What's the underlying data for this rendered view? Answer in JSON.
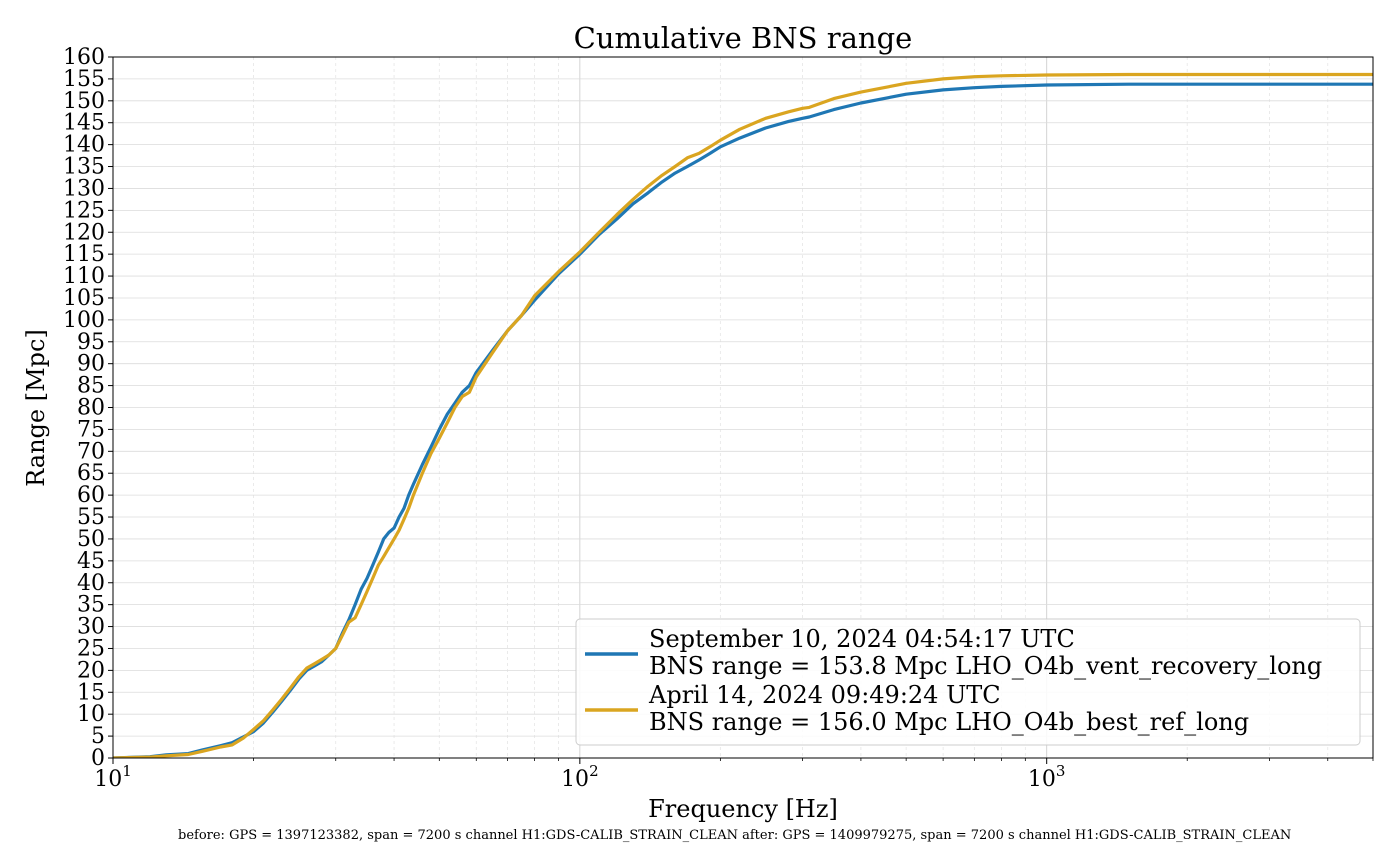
{
  "chart_data": {
    "type": "line",
    "title": "Cumulative BNS range",
    "xlabel": "Frequency [Hz]",
    "ylabel": "Range [Mpc]",
    "xscale": "log",
    "xlim": [
      10,
      5000
    ],
    "ylim": [
      0,
      160
    ],
    "ytick_step": 5,
    "xticks": [
      {
        "value": 10,
        "base": "10",
        "exp": "1"
      },
      {
        "value": 100,
        "base": "10",
        "exp": "2"
      },
      {
        "value": 1000,
        "base": "10",
        "exp": "3"
      }
    ],
    "grid": true,
    "legend_position": "lower-right",
    "series": [
      {
        "label_line1": "September 10, 2024 04:54:17 UTC",
        "label_line2": "BNS range = 153.8 Mpc LHO_O4b_vent_recovery_long",
        "color": "#1f77b4",
        "x": [
          10,
          12,
          13,
          14.5,
          15.5,
          17,
          18,
          19,
          20,
          21,
          22,
          23,
          24,
          25,
          26,
          27,
          28,
          29,
          30,
          31,
          32,
          33,
          34,
          35,
          36,
          37,
          38,
          39,
          40,
          41,
          42,
          43,
          44,
          46,
          48,
          50,
          52,
          54,
          56,
          58,
          60,
          65,
          70,
          75,
          80,
          90,
          100,
          110,
          120,
          130,
          140,
          150,
          160,
          170,
          180,
          190,
          200,
          220,
          250,
          280,
          300,
          310,
          350,
          400,
          500,
          600,
          700,
          800,
          1000,
          1500,
          2000,
          3000,
          5000
        ],
        "y": [
          0,
          0.3,
          0.7,
          1.0,
          1.8,
          2.8,
          3.5,
          4.8,
          6.0,
          8.0,
          10.5,
          13.0,
          15.5,
          18.0,
          20.0,
          21.0,
          22.0,
          23.5,
          25.0,
          28.5,
          31.5,
          35.0,
          38.5,
          41.0,
          44.0,
          47.0,
          50.0,
          51.5,
          52.5,
          55.0,
          57.0,
          60.0,
          62.5,
          67.0,
          71.0,
          75.0,
          78.5,
          81.0,
          83.5,
          85.0,
          88.0,
          93.0,
          97.5,
          101.0,
          104.5,
          110.5,
          115.0,
          119.5,
          123.0,
          126.5,
          129.0,
          131.5,
          133.5,
          135.0,
          136.5,
          138.0,
          139.5,
          141.5,
          143.8,
          145.3,
          146.0,
          146.3,
          148.0,
          149.5,
          151.5,
          152.5,
          153.0,
          153.3,
          153.6,
          153.8,
          153.8,
          153.8,
          153.8
        ]
      },
      {
        "label_line1": "April 14, 2024 09:49:24 UTC",
        "label_line2": "BNS range = 156.0 Mpc LHO_O4b_best_ref_long",
        "color": "#daa520",
        "x": [
          10,
          12,
          13,
          14.5,
          15.5,
          17,
          18,
          19,
          20,
          21,
          22,
          23,
          24,
          25,
          26,
          27,
          28,
          29,
          30,
          31,
          32,
          33,
          34,
          35,
          36,
          37,
          38,
          39,
          40,
          41,
          42,
          43,
          44,
          46,
          48,
          50,
          52,
          54,
          56,
          58,
          60,
          65,
          70,
          75,
          80,
          90,
          100,
          110,
          120,
          130,
          140,
          150,
          160,
          170,
          180,
          190,
          200,
          220,
          250,
          280,
          300,
          310,
          350,
          400,
          500,
          600,
          700,
          800,
          1000,
          1500,
          2000,
          3000,
          5000
        ],
        "y": [
          0,
          0.2,
          0.5,
          0.8,
          1.5,
          2.5,
          3.0,
          4.5,
          6.5,
          8.5,
          11.0,
          13.5,
          16.0,
          18.5,
          20.5,
          21.5,
          22.5,
          23.5,
          25.0,
          28.0,
          31.0,
          32.0,
          35.0,
          38.0,
          41.0,
          44.0,
          46.0,
          48.0,
          50.0,
          52.0,
          54.5,
          57.0,
          60.0,
          65.0,
          69.5,
          73.0,
          76.5,
          80.0,
          82.5,
          83.5,
          87.0,
          92.5,
          97.5,
          101.0,
          105.5,
          111.0,
          115.5,
          120.0,
          124.0,
          127.5,
          130.5,
          133.0,
          135.0,
          137.0,
          138.0,
          139.5,
          141.0,
          143.5,
          146.0,
          147.5,
          148.3,
          148.5,
          150.5,
          152.0,
          154.0,
          155.0,
          155.5,
          155.7,
          155.9,
          156.0,
          156.0,
          156.0,
          156.0
        ]
      }
    ]
  },
  "footer": {
    "note": "before: GPS = 1397123382, span = 7200 s channel H1:GDS-CALIB_STRAIN_CLEAN after: GPS = 1409979275, span = 7200 s channel H1:GDS-CALIB_STRAIN_CLEAN"
  }
}
